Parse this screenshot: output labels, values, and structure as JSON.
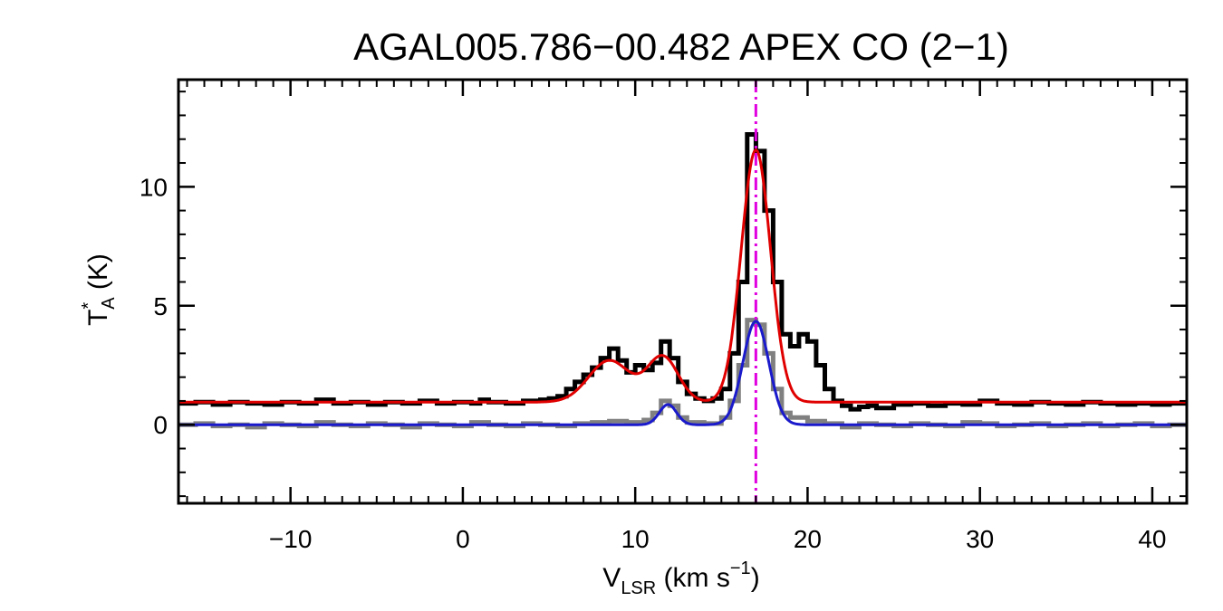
{
  "chart_data": {
    "type": "line",
    "title": "AGAL005.786−00.482  APEX CO (2−1)",
    "xlabel": {
      "main": "V",
      "sub": "LSR",
      "unit": " (km s",
      "sup": "−1",
      "close": ")"
    },
    "ylabel": {
      "main": "T",
      "sup": "*",
      "sub": "A",
      "unit": " (K)"
    },
    "xlim": [
      -16.5,
      42
    ],
    "ylim": [
      -3.3,
      14.5
    ],
    "x_ticks": [
      -10,
      0,
      10,
      20,
      30,
      40
    ],
    "x_tick_labels": [
      "−10",
      "0",
      "10",
      "20",
      "30",
      "40"
    ],
    "y_ticks": [
      0,
      5,
      10
    ],
    "y_tick_labels": [
      "0",
      "5",
      "10"
    ],
    "x_minor_step": 1,
    "y_minor_step": 1,
    "vline": {
      "x": 17.0,
      "color": "#e000e0"
    },
    "colors": {
      "spectrum": "#000000",
      "residual": "#808080",
      "fit": "#e00000",
      "residual_fit": "#1a1acc"
    },
    "series": [
      {
        "kind": "step",
        "color": "#000000",
        "points": [
          [
            -16.5,
            0.9
          ],
          [
            -15.5,
            0.95
          ],
          [
            -14.5,
            0.85
          ],
          [
            -13.5,
            0.95
          ],
          [
            -12.5,
            0.9
          ],
          [
            -11.5,
            0.85
          ],
          [
            -10.5,
            0.95
          ],
          [
            -9.5,
            0.9
          ],
          [
            -8.5,
            1.05
          ],
          [
            -7.5,
            0.9
          ],
          [
            -6.5,
            0.95
          ],
          [
            -5.5,
            0.85
          ],
          [
            -4.5,
            0.95
          ],
          [
            -3.5,
            0.9
          ],
          [
            -2.5,
            1.0
          ],
          [
            -1.5,
            0.9
          ],
          [
            -0.5,
            0.95
          ],
          [
            0.5,
            0.9
          ],
          [
            1.0,
            1.05
          ],
          [
            1.5,
            0.95
          ],
          [
            2.5,
            0.9
          ],
          [
            3.5,
            1.0
          ],
          [
            4.5,
            1.05
          ],
          [
            5.0,
            1.1
          ],
          [
            5.5,
            1.2
          ],
          [
            6.0,
            1.5
          ],
          [
            6.5,
            1.8
          ],
          [
            7.0,
            2.1
          ],
          [
            7.5,
            2.4
          ],
          [
            8.0,
            2.8
          ],
          [
            8.5,
            3.2
          ],
          [
            9.0,
            2.7
          ],
          [
            9.5,
            2.2
          ],
          [
            10.0,
            2.5
          ],
          [
            10.5,
            2.3
          ],
          [
            11.0,
            2.6
          ],
          [
            11.5,
            3.5
          ],
          [
            12.0,
            2.8
          ],
          [
            12.5,
            1.8
          ],
          [
            13.0,
            1.3
          ],
          [
            13.5,
            1.1
          ],
          [
            14.0,
            1.0
          ],
          [
            14.5,
            1.1
          ],
          [
            15.0,
            1.5
          ],
          [
            15.5,
            3.0
          ],
          [
            16.0,
            6.0
          ],
          [
            16.5,
            12.2
          ],
          [
            17.0,
            11.5
          ],
          [
            17.5,
            9.0
          ],
          [
            18.0,
            6.0
          ],
          [
            18.5,
            3.8
          ],
          [
            19.0,
            3.3
          ],
          [
            19.5,
            3.8
          ],
          [
            20.0,
            3.5
          ],
          [
            20.5,
            2.5
          ],
          [
            21.0,
            1.5
          ],
          [
            21.5,
            1.0
          ],
          [
            22.0,
            0.8
          ],
          [
            22.5,
            0.65
          ],
          [
            23.0,
            0.75
          ],
          [
            23.5,
            0.8
          ],
          [
            24.0,
            0.7
          ],
          [
            25.0,
            0.85
          ],
          [
            26.0,
            0.9
          ],
          [
            27.0,
            0.8
          ],
          [
            28.0,
            0.9
          ],
          [
            29.0,
            0.85
          ],
          [
            30.0,
            1.0
          ],
          [
            31.0,
            0.9
          ],
          [
            32.0,
            0.85
          ],
          [
            33.0,
            0.95
          ],
          [
            34.0,
            0.9
          ],
          [
            35.0,
            0.85
          ],
          [
            36.0,
            0.95
          ],
          [
            37.0,
            0.9
          ],
          [
            38.0,
            0.85
          ],
          [
            39.0,
            0.9
          ],
          [
            40.0,
            0.85
          ],
          [
            41.0,
            0.9
          ],
          [
            42.0,
            0.85
          ]
        ]
      },
      {
        "kind": "step",
        "color": "#808080",
        "points": [
          [
            -16.5,
            0.0
          ],
          [
            -15.5,
            0.05
          ],
          [
            -14.5,
            -0.05
          ],
          [
            -13.5,
            0.0
          ],
          [
            -12.5,
            -0.1
          ],
          [
            -11.5,
            0.05
          ],
          [
            -10.5,
            0.0
          ],
          [
            -9.5,
            -0.05
          ],
          [
            -8.5,
            0.1
          ],
          [
            -7.5,
            0.0
          ],
          [
            -6.5,
            -0.05
          ],
          [
            -5.5,
            0.05
          ],
          [
            -4.5,
            0.0
          ],
          [
            -3.5,
            -0.1
          ],
          [
            -2.5,
            0.05
          ],
          [
            -1.5,
            0.0
          ],
          [
            -0.5,
            -0.05
          ],
          [
            0.5,
            0.1
          ],
          [
            1.5,
            0.0
          ],
          [
            2.5,
            -0.05
          ],
          [
            3.5,
            0.05
          ],
          [
            4.5,
            0.0
          ],
          [
            5.5,
            -0.05
          ],
          [
            6.5,
            0.05
          ],
          [
            7.5,
            0.1
          ],
          [
            8.5,
            0.15
          ],
          [
            9.5,
            0.1
          ],
          [
            10.5,
            0.2
          ],
          [
            11.0,
            0.5
          ],
          [
            11.5,
            1.0
          ],
          [
            12.0,
            0.8
          ],
          [
            12.5,
            0.3
          ],
          [
            13.0,
            0.1
          ],
          [
            14.0,
            0.05
          ],
          [
            15.0,
            0.3
          ],
          [
            15.5,
            1.0
          ],
          [
            16.0,
            2.5
          ],
          [
            16.5,
            4.4
          ],
          [
            17.0,
            4.2
          ],
          [
            17.5,
            3.0
          ],
          [
            18.0,
            1.5
          ],
          [
            18.5,
            0.5
          ],
          [
            19.0,
            0.3
          ],
          [
            20.0,
            0.15
          ],
          [
            21.0,
            0.05
          ],
          [
            22.0,
            -0.1
          ],
          [
            23.0,
            0.05
          ],
          [
            24.0,
            0.0
          ],
          [
            25.0,
            -0.05
          ],
          [
            26.0,
            0.05
          ],
          [
            27.0,
            0.0
          ],
          [
            28.0,
            -0.05
          ],
          [
            29.0,
            0.1
          ],
          [
            30.0,
            0.05
          ],
          [
            31.0,
            -0.05
          ],
          [
            32.0,
            0.0
          ],
          [
            33.0,
            0.05
          ],
          [
            34.0,
            -0.05
          ],
          [
            35.0,
            0.0
          ],
          [
            36.0,
            0.05
          ],
          [
            37.0,
            -0.05
          ],
          [
            38.0,
            0.0
          ],
          [
            39.0,
            0.05
          ],
          [
            40.0,
            -0.05
          ],
          [
            41.0,
            0.0
          ],
          [
            42.0,
            -0.1
          ]
        ]
      },
      {
        "kind": "gaussian_sum",
        "color": "#e00000",
        "baseline": 0.95,
        "components": [
          {
            "amp": 1.75,
            "center": 8.5,
            "sigma": 1.2
          },
          {
            "amp": 1.9,
            "center": 11.6,
            "sigma": 0.9
          },
          {
            "amp": 10.6,
            "center": 17.0,
            "sigma": 0.85
          }
        ]
      },
      {
        "kind": "gaussian_sum",
        "color": "#1a1acc",
        "baseline": 0.0,
        "components": [
          {
            "amp": 0.85,
            "center": 11.9,
            "sigma": 0.5
          },
          {
            "amp": 4.35,
            "center": 17.0,
            "sigma": 0.75
          }
        ]
      }
    ]
  }
}
